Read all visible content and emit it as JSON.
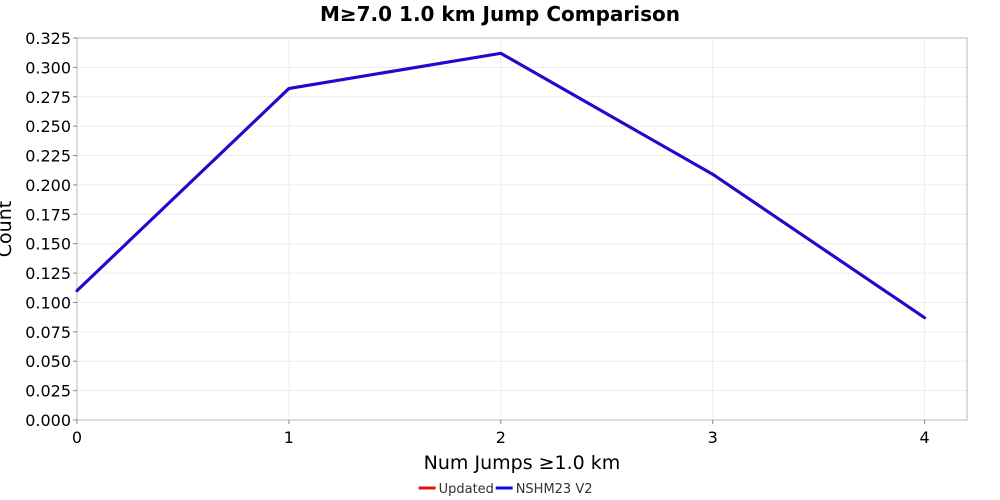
{
  "chart_data": {
    "type": "line",
    "title": "M≥7.0 1.0 km Jump Comparison",
    "xlabel": "Num Jumps ≥1.0 km",
    "ylabel": "Count",
    "xlim": [
      0,
      4.2
    ],
    "ylim": [
      0,
      0.325
    ],
    "x_ticks": [
      0,
      1,
      2,
      3,
      4
    ],
    "x_tick_labels": [
      "0",
      "1",
      "2",
      "3",
      "4"
    ],
    "y_ticks": [
      0,
      0.025,
      0.05,
      0.075,
      0.1,
      0.125,
      0.15,
      0.175,
      0.2,
      0.225,
      0.25,
      0.275,
      0.3,
      0.325
    ],
    "y_tick_labels": [
      "0.000",
      "0.025",
      "0.050",
      "0.075",
      "0.100",
      "0.125",
      "0.150",
      "0.175",
      "0.200",
      "0.225",
      "0.250",
      "0.275",
      "0.300",
      "0.325"
    ],
    "grid": true,
    "legend_position": "bottom-center",
    "series": [
      {
        "name": "Updated",
        "color": "#e8120c",
        "x": [
          0,
          1,
          2,
          3,
          4
        ],
        "y": [
          0.11,
          0.282,
          0.312,
          0.209,
          0.087
        ]
      },
      {
        "name": "NSHM23 V2",
        "color": "#1a0ad6",
        "x": [
          0,
          1,
          2,
          3,
          4
        ],
        "y": [
          0.11,
          0.282,
          0.312,
          0.209,
          0.087
        ]
      }
    ]
  }
}
